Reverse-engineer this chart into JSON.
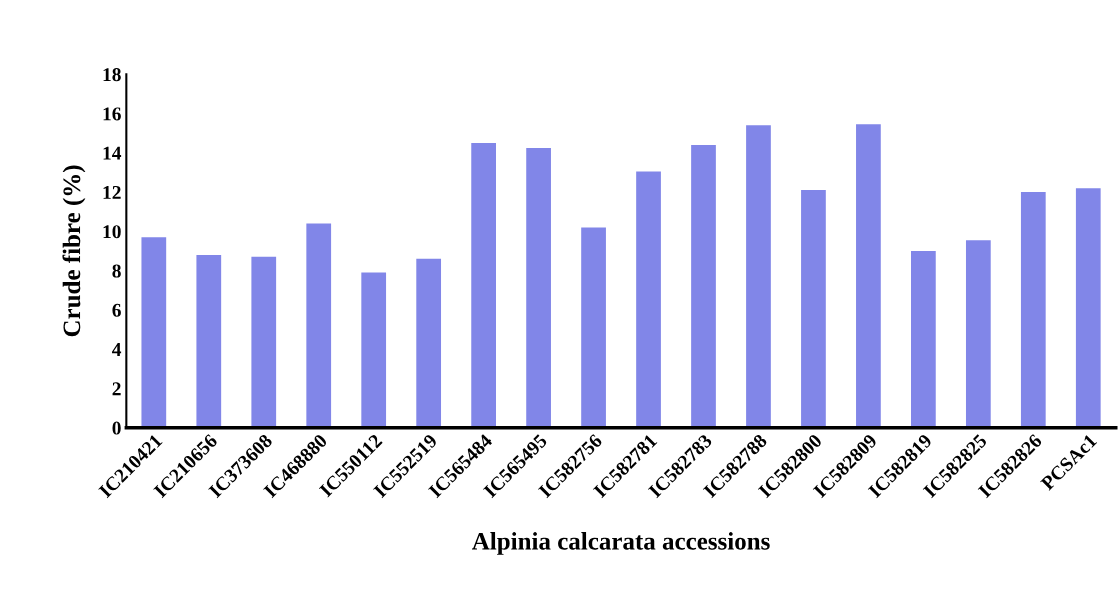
{
  "chart_data": {
    "type": "bar",
    "categories": [
      "IC210421",
      "IC210656",
      "IC373608",
      "IC468880",
      "IC550112",
      "IC552519",
      "IC565484",
      "IC565495",
      "IC582756",
      "IC582781",
      "IC582783",
      "IC582788",
      "IC582800",
      "IC582809",
      "IC582819",
      "IC582825",
      "IC582826",
      "PCSAc1"
    ],
    "values": [
      9.7,
      8.8,
      8.7,
      10.4,
      7.9,
      8.6,
      14.5,
      14.25,
      10.2,
      13.05,
      14.4,
      15.4,
      12.1,
      15.45,
      9.0,
      9.55,
      12.0,
      12.2
    ],
    "color": "#8186e8",
    "xlabel": "Alpinia calcarata accessions",
    "ylabel": "Crude fibre (%)",
    "ylim": [
      0,
      18
    ],
    "yticks": [
      0,
      2,
      4,
      6,
      8,
      10,
      12,
      14,
      16,
      18
    ],
    "grid": false
  }
}
